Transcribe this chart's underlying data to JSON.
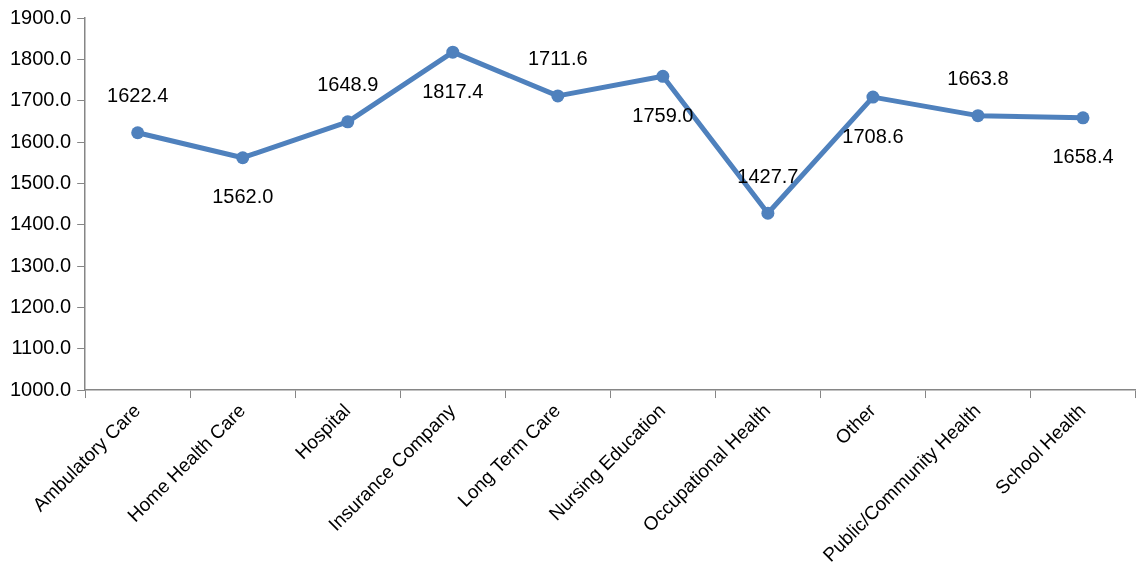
{
  "chart_data": {
    "type": "line",
    "categories": [
      "Ambulatory Care",
      "Home Health Care",
      "Hospital",
      "Insurance Company",
      "Long Term Care",
      "Nursing Education",
      "Occupational Health",
      "Other",
      "Public/Community Health",
      "School Health"
    ],
    "series": [
      {
        "color": "#4f81bd",
        "values": [
          1622.4,
          1562.0,
          1648.9,
          1817.4,
          1711.6,
          1759.0,
          1427.7,
          1708.6,
          1663.8,
          1658.4
        ],
        "value_labels": [
          "1622.4",
          "1562.0",
          "1648.9",
          "1817.4",
          "1711.6",
          "1759.0",
          "1427.7",
          "1708.6",
          "1663.8",
          "1658.4"
        ]
      }
    ],
    "ylim": [
      1000,
      1900
    ],
    "yticks": [
      {
        "value": 1000,
        "label": "1000.0"
      },
      {
        "value": 1100,
        "label": "1100.0"
      },
      {
        "value": 1200,
        "label": "1200.0"
      },
      {
        "value": 1300,
        "label": "1300.0"
      },
      {
        "value": 1400,
        "label": "1400.0"
      },
      {
        "value": 1500,
        "label": "1500.0"
      },
      {
        "value": 1600,
        "label": "1600.0"
      },
      {
        "value": 1700,
        "label": "1700.0"
      },
      {
        "value": 1800,
        "label": "1800.0"
      },
      {
        "value": 1900,
        "label": "1900.0"
      }
    ],
    "grid": false,
    "legend": false,
    "marker": "circle",
    "line_style": "solid"
  }
}
